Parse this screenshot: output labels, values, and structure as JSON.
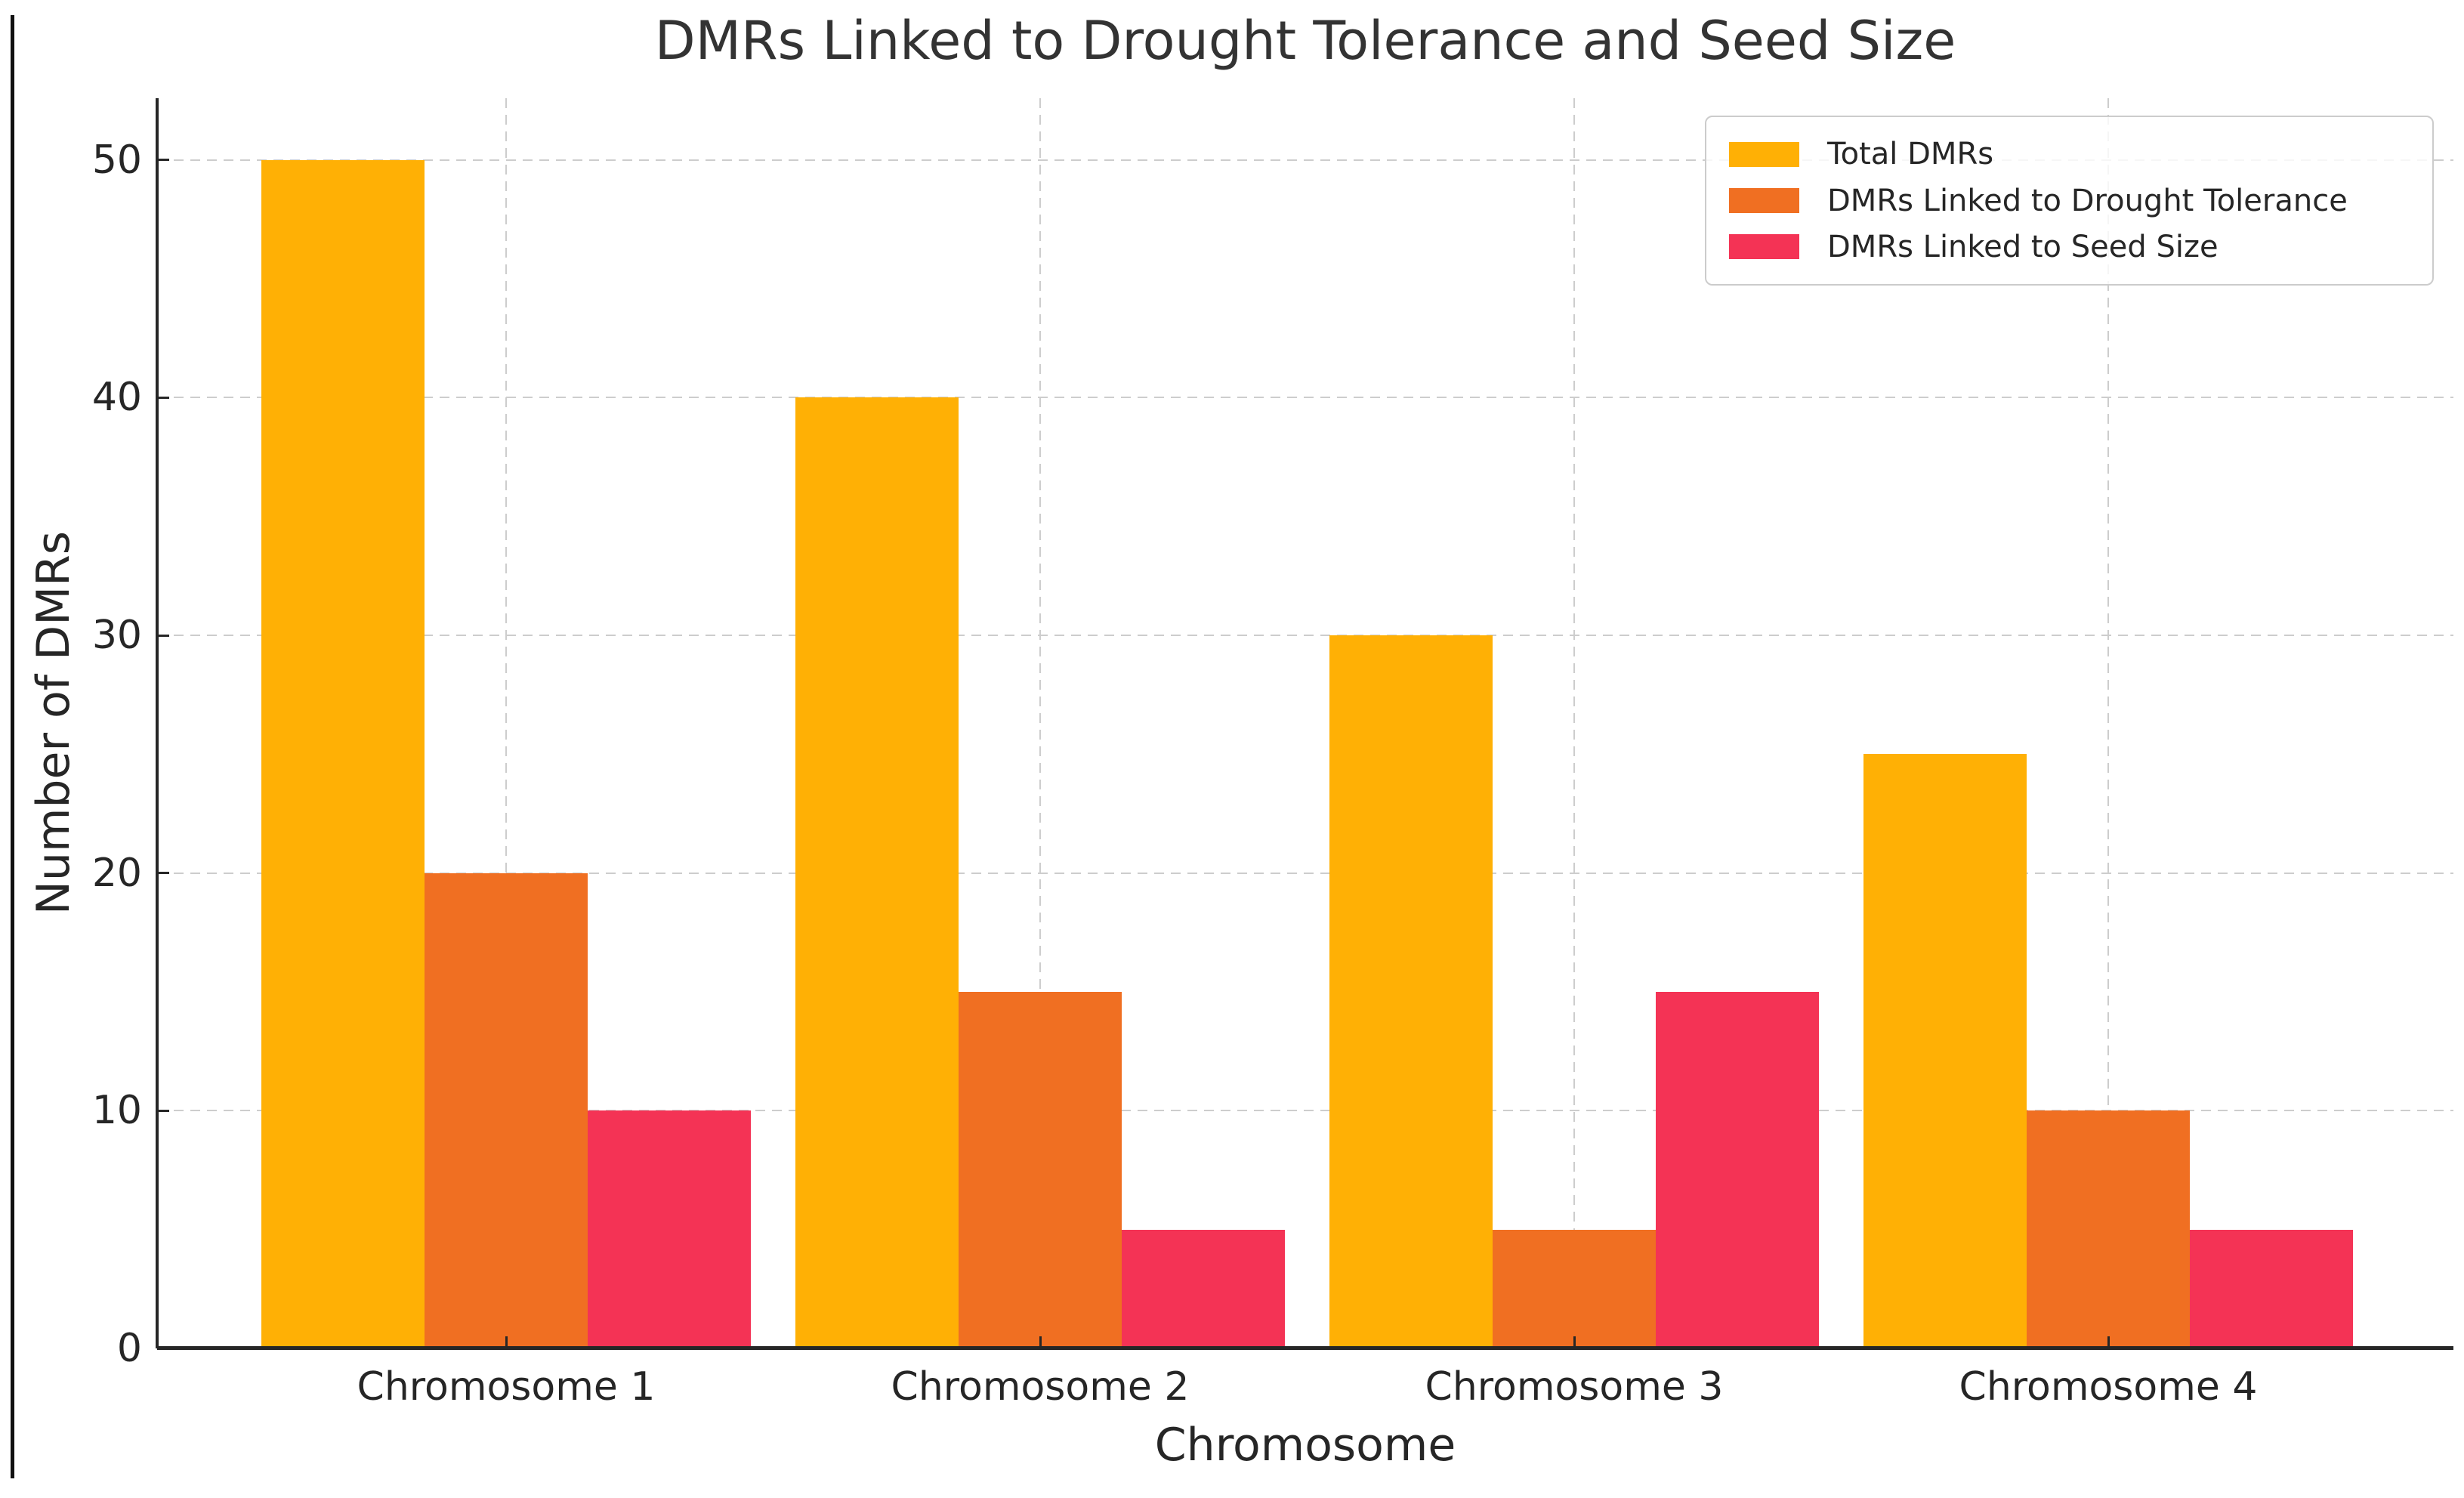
{
  "chart_data": {
    "type": "bar",
    "title": "DMRs Linked to Drought Tolerance and Seed Size",
    "xlabel": "Chromosome",
    "ylabel": "Number of DMRs",
    "categories": [
      "Chromosome 1",
      "Chromosome 2",
      "Chromosome 3",
      "Chromosome 4"
    ],
    "series": [
      {
        "name": "Total DMRs",
        "color": "#FFB005",
        "values": [
          50,
          40,
          30,
          25
        ]
      },
      {
        "name": "DMRs Linked to Drought Tolerance",
        "color": "#F06F22",
        "values": [
          20,
          15,
          5,
          10
        ]
      },
      {
        "name": "DMRs Linked to Seed Size",
        "color": "#F43355",
        "values": [
          10,
          5,
          15,
          5
        ]
      }
    ],
    "yticks": [
      0,
      10,
      20,
      30,
      40,
      50
    ],
    "ylim": [
      0,
      52.6
    ],
    "grid": true,
    "grid_style": "dashed",
    "legend_position": "upper right",
    "legend_labels": [
      "Total DMRs",
      "DMRs Linked to Drought Tolerance",
      "DMRs Linked to Seed Size"
    ]
  },
  "colors": {
    "grid": "#cdcdcd",
    "spine": "#262626",
    "text": "#262626",
    "legend_border": "#cccccc",
    "window_border": "#111111"
  }
}
